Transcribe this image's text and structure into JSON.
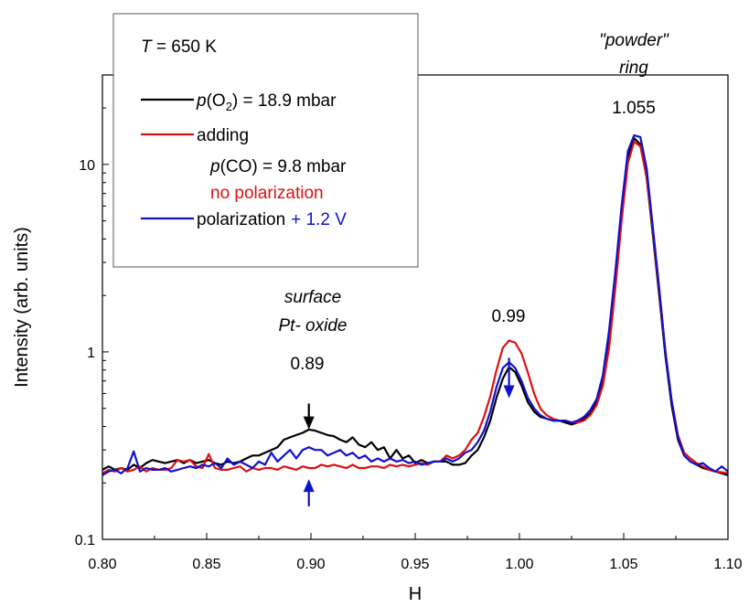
{
  "chart_data": {
    "type": "line",
    "xlabel": "H",
    "ylabel": "Intensity (arb. units)",
    "xlim": [
      0.8,
      1.1
    ],
    "ylim": [
      0.1,
      30
    ],
    "yscale": "log",
    "x_ticks": [
      "0.80",
      "0.85",
      "0.90",
      "0.95",
      "1.00",
      "1.05",
      "1.10"
    ],
    "y_ticks": [
      "0.1",
      "1",
      "10"
    ],
    "legend_position": "top-left",
    "legend": {
      "temperature_label": "T",
      "temperature_value": " = 650 K",
      "entries": [
        {
          "prefix": "p",
          "paren_open": "(O",
          "sub": "2",
          "rest": ") = 18.9 mbar",
          "color": "#000000"
        },
        {
          "text": "adding",
          "color": "#dd1111"
        },
        {
          "prefix": "p",
          "rest": "(CO) = 9.8 mbar",
          "color": "#000000"
        },
        {
          "text": "no polarization",
          "color": "#dd1111"
        },
        {
          "text": "polarization",
          "extra": "+ 1.2 V",
          "extra_color": "#1111cc",
          "color": "#1111cc"
        }
      ]
    },
    "annotations": {
      "powder_line1": "\"powder\"",
      "powder_line2": "ring",
      "powder_value": "1.055",
      "oxide_line1": "surface",
      "oxide_line2": "Pt- oxide",
      "oxide_value": "0.89",
      "mid_value": "0.99"
    },
    "series": [
      {
        "name": "p(O2) = 18.9 mbar",
        "color": "#000000",
        "x": [
          0.8,
          0.803,
          0.806,
          0.809,
          0.812,
          0.815,
          0.818,
          0.821,
          0.824,
          0.827,
          0.83,
          0.833,
          0.836,
          0.839,
          0.842,
          0.845,
          0.848,
          0.851,
          0.854,
          0.857,
          0.86,
          0.863,
          0.866,
          0.869,
          0.872,
          0.875,
          0.878,
          0.881,
          0.884,
          0.887,
          0.89,
          0.893,
          0.896,
          0.899,
          0.902,
          0.905,
          0.908,
          0.911,
          0.914,
          0.917,
          0.92,
          0.923,
          0.926,
          0.929,
          0.932,
          0.935,
          0.938,
          0.941,
          0.944,
          0.947,
          0.95,
          0.953,
          0.956,
          0.959,
          0.962,
          0.965,
          0.968,
          0.971,
          0.974,
          0.977,
          0.98,
          0.983,
          0.986,
          0.989,
          0.992,
          0.995,
          0.998,
          1.001,
          1.004,
          1.007,
          1.01,
          1.013,
          1.016,
          1.019,
          1.022,
          1.025,
          1.028,
          1.031,
          1.034,
          1.037,
          1.04,
          1.043,
          1.046,
          1.049,
          1.052,
          1.055,
          1.058,
          1.061,
          1.064,
          1.067,
          1.07,
          1.073,
          1.076,
          1.079,
          1.082,
          1.085,
          1.088,
          1.091,
          1.094,
          1.097,
          1.1
        ],
        "y": [
          0.235,
          0.245,
          0.235,
          0.24,
          0.235,
          0.25,
          0.24,
          0.255,
          0.265,
          0.26,
          0.255,
          0.26,
          0.265,
          0.255,
          0.265,
          0.255,
          0.26,
          0.265,
          0.255,
          0.25,
          0.26,
          0.255,
          0.26,
          0.27,
          0.28,
          0.28,
          0.29,
          0.3,
          0.31,
          0.34,
          0.35,
          0.36,
          0.37,
          0.385,
          0.38,
          0.37,
          0.36,
          0.355,
          0.34,
          0.33,
          0.35,
          0.32,
          0.31,
          0.33,
          0.3,
          0.31,
          0.27,
          0.3,
          0.27,
          0.28,
          0.255,
          0.265,
          0.255,
          0.26,
          0.26,
          0.26,
          0.25,
          0.25,
          0.255,
          0.28,
          0.3,
          0.35,
          0.43,
          0.57,
          0.72,
          0.83,
          0.78,
          0.66,
          0.54,
          0.48,
          0.45,
          0.44,
          0.43,
          0.43,
          0.42,
          0.41,
          0.42,
          0.44,
          0.47,
          0.55,
          0.72,
          1.2,
          2.5,
          5.5,
          11.0,
          13.8,
          12.8,
          8.5,
          4.2,
          2.0,
          0.95,
          0.52,
          0.34,
          0.28,
          0.26,
          0.25,
          0.24,
          0.235,
          0.23,
          0.225,
          0.22
        ]
      },
      {
        "name": "adding p(CO) = 9.8 mbar no polarization",
        "color": "#dd1111",
        "x": [
          0.8,
          0.803,
          0.806,
          0.809,
          0.812,
          0.815,
          0.818,
          0.821,
          0.824,
          0.827,
          0.83,
          0.833,
          0.836,
          0.839,
          0.842,
          0.845,
          0.848,
          0.851,
          0.854,
          0.857,
          0.86,
          0.863,
          0.866,
          0.869,
          0.872,
          0.875,
          0.878,
          0.881,
          0.884,
          0.887,
          0.89,
          0.893,
          0.896,
          0.899,
          0.902,
          0.905,
          0.908,
          0.911,
          0.914,
          0.917,
          0.92,
          0.923,
          0.926,
          0.929,
          0.932,
          0.935,
          0.938,
          0.941,
          0.944,
          0.947,
          0.95,
          0.953,
          0.956,
          0.959,
          0.962,
          0.965,
          0.968,
          0.971,
          0.974,
          0.977,
          0.98,
          0.983,
          0.986,
          0.989,
          0.992,
          0.995,
          0.998,
          1.001,
          1.004,
          1.007,
          1.01,
          1.013,
          1.016,
          1.019,
          1.022,
          1.025,
          1.028,
          1.031,
          1.034,
          1.037,
          1.04,
          1.043,
          1.046,
          1.049,
          1.052,
          1.055,
          1.058,
          1.061,
          1.064,
          1.067,
          1.07,
          1.073,
          1.076,
          1.079,
          1.082,
          1.085,
          1.088,
          1.091,
          1.094,
          1.097,
          1.1
        ],
        "y": [
          0.225,
          0.235,
          0.23,
          0.24,
          0.23,
          0.235,
          0.245,
          0.23,
          0.24,
          0.235,
          0.235,
          0.24,
          0.265,
          0.26,
          0.265,
          0.245,
          0.24,
          0.285,
          0.24,
          0.235,
          0.235,
          0.24,
          0.245,
          0.23,
          0.24,
          0.235,
          0.24,
          0.24,
          0.235,
          0.245,
          0.24,
          0.235,
          0.245,
          0.24,
          0.24,
          0.25,
          0.245,
          0.25,
          0.245,
          0.24,
          0.25,
          0.24,
          0.24,
          0.245,
          0.245,
          0.24,
          0.25,
          0.245,
          0.25,
          0.245,
          0.25,
          0.255,
          0.25,
          0.26,
          0.26,
          0.28,
          0.27,
          0.28,
          0.3,
          0.34,
          0.37,
          0.45,
          0.58,
          0.8,
          1.05,
          1.15,
          1.12,
          0.98,
          0.78,
          0.6,
          0.5,
          0.46,
          0.44,
          0.43,
          0.43,
          0.42,
          0.42,
          0.43,
          0.46,
          0.52,
          0.66,
          1.05,
          2.2,
          5.0,
          10.2,
          13.2,
          12.5,
          8.6,
          4.4,
          2.1,
          1.0,
          0.55,
          0.36,
          0.29,
          0.27,
          0.255,
          0.245,
          0.235,
          0.23,
          0.228,
          0.225
        ]
      },
      {
        "name": "polarization + 1.2 V",
        "color": "#1111cc",
        "x": [
          0.8,
          0.803,
          0.806,
          0.809,
          0.812,
          0.815,
          0.818,
          0.821,
          0.824,
          0.827,
          0.83,
          0.833,
          0.836,
          0.839,
          0.842,
          0.845,
          0.848,
          0.851,
          0.854,
          0.857,
          0.86,
          0.863,
          0.866,
          0.869,
          0.872,
          0.875,
          0.878,
          0.881,
          0.884,
          0.887,
          0.89,
          0.893,
          0.896,
          0.899,
          0.902,
          0.905,
          0.908,
          0.911,
          0.914,
          0.917,
          0.92,
          0.923,
          0.926,
          0.929,
          0.932,
          0.935,
          0.938,
          0.941,
          0.944,
          0.947,
          0.95,
          0.953,
          0.956,
          0.959,
          0.962,
          0.965,
          0.968,
          0.971,
          0.974,
          0.977,
          0.98,
          0.983,
          0.986,
          0.989,
          0.992,
          0.995,
          0.998,
          1.001,
          1.004,
          1.007,
          1.01,
          1.013,
          1.016,
          1.019,
          1.022,
          1.025,
          1.028,
          1.031,
          1.034,
          1.037,
          1.04,
          1.043,
          1.046,
          1.049,
          1.052,
          1.055,
          1.058,
          1.061,
          1.064,
          1.067,
          1.07,
          1.073,
          1.076,
          1.079,
          1.082,
          1.085,
          1.088,
          1.091,
          1.094,
          1.097,
          1.1
        ],
        "y": [
          0.22,
          0.23,
          0.235,
          0.225,
          0.24,
          0.295,
          0.23,
          0.24,
          0.235,
          0.235,
          0.24,
          0.23,
          0.235,
          0.24,
          0.245,
          0.24,
          0.25,
          0.245,
          0.255,
          0.24,
          0.27,
          0.25,
          0.26,
          0.25,
          0.24,
          0.26,
          0.25,
          0.29,
          0.26,
          0.28,
          0.3,
          0.27,
          0.3,
          0.31,
          0.3,
          0.3,
          0.28,
          0.29,
          0.3,
          0.28,
          0.29,
          0.27,
          0.28,
          0.26,
          0.27,
          0.26,
          0.27,
          0.26,
          0.265,
          0.255,
          0.26,
          0.25,
          0.255,
          0.26,
          0.26,
          0.27,
          0.26,
          0.27,
          0.29,
          0.3,
          0.33,
          0.38,
          0.48,
          0.65,
          0.82,
          0.88,
          0.82,
          0.7,
          0.57,
          0.5,
          0.46,
          0.44,
          0.43,
          0.43,
          0.43,
          0.42,
          0.43,
          0.45,
          0.49,
          0.56,
          0.75,
          1.3,
          2.7,
          6.0,
          11.8,
          14.3,
          14.0,
          9.5,
          4.6,
          2.2,
          1.0,
          0.55,
          0.35,
          0.28,
          0.26,
          0.25,
          0.255,
          0.24,
          0.23,
          0.245,
          0.23
        ]
      }
    ],
    "arrows": [
      {
        "name": "black-arrow-0.89",
        "x": 0.899,
        "y_from": 0.53,
        "y_to": 0.395,
        "color": "#000000"
      },
      {
        "name": "blue-arrow-up-0.89",
        "x": 0.899,
        "y_from": 0.15,
        "y_to": 0.205,
        "color": "#1111cc"
      },
      {
        "name": "blue-arrow-down-0.99",
        "x": 0.995,
        "y_from": 0.93,
        "y_to": 0.58,
        "color": "#1111cc"
      }
    ]
  }
}
